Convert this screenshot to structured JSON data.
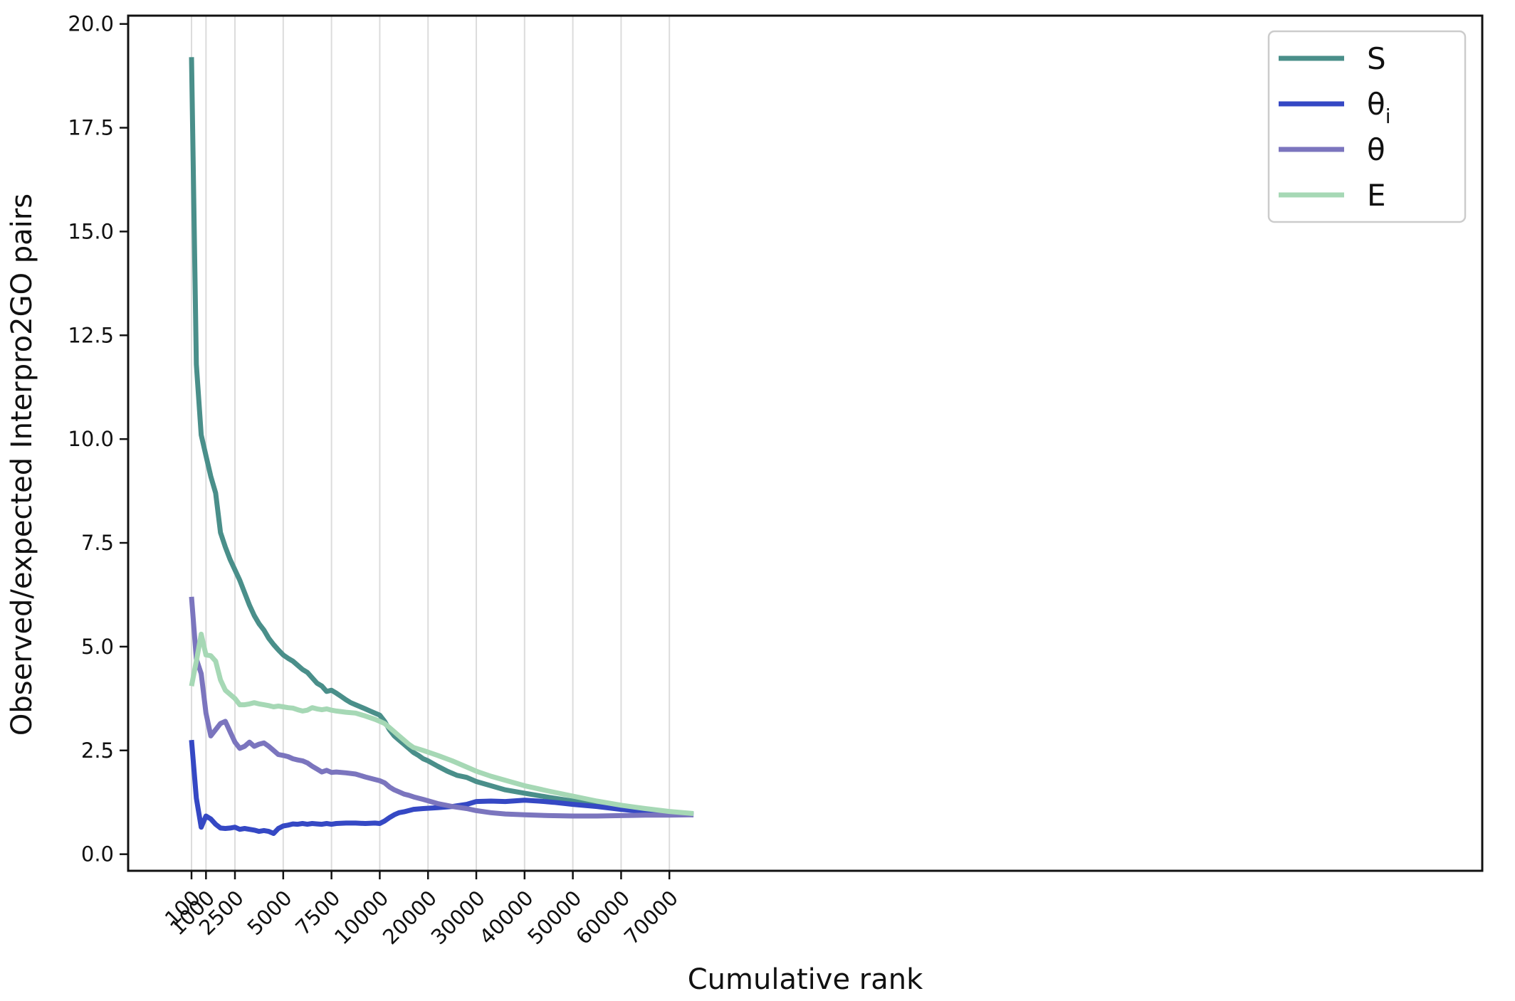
{
  "chart_data": {
    "type": "line",
    "xlabel": "Cumulative rank",
    "ylabel": "Observed/expected Interpro2GO pairs",
    "ylim": [
      -0.4,
      20.2
    ],
    "x_ticks": [
      {
        "label": "100",
        "slot": 0
      },
      {
        "label": "1000",
        "slot": 0.6
      },
      {
        "label": "2500",
        "slot": 1.8
      },
      {
        "label": "5000",
        "slot": 3.8
      },
      {
        "label": "7500",
        "slot": 5.8
      },
      {
        "label": "10000",
        "slot": 7.8
      },
      {
        "label": "20000",
        "slot": 9.8
      },
      {
        "label": "30000",
        "slot": 11.8
      },
      {
        "label": "40000",
        "slot": 13.8
      },
      {
        "label": "50000",
        "slot": 15.8
      },
      {
        "label": "60000",
        "slot": 17.8
      },
      {
        "label": "70000",
        "slot": 19.8
      }
    ],
    "y_ticks": [
      "0.0",
      "2.5",
      "5.0",
      "7.5",
      "10.0",
      "12.5",
      "15.0",
      "17.5",
      "20.0"
    ],
    "y_tick_values": [
      0,
      2.5,
      5,
      7.5,
      10,
      12.5,
      15,
      17.5,
      20
    ],
    "grid": "vertical",
    "legend_position": "top-right",
    "x_note": "x positions are given as tick slots (the axis is not linear in rank); slot 0 = 100, slot 0.6 = 1000, slot 1.8 = 2500, then 2 slots per labeled tick",
    "series": [
      {
        "name": "S",
        "subscript": "",
        "color": "#4a8f8a",
        "points": [
          [
            0,
            19.2
          ],
          [
            0.2,
            11.8
          ],
          [
            0.4,
            10.1
          ],
          [
            0.6,
            9.6
          ],
          [
            0.8,
            9.1
          ],
          [
            1.0,
            8.7
          ],
          [
            1.2,
            7.75
          ],
          [
            1.4,
            7.4
          ],
          [
            1.6,
            7.1
          ],
          [
            1.8,
            6.85
          ],
          [
            2.0,
            6.6
          ],
          [
            2.2,
            6.3
          ],
          [
            2.4,
            6.0
          ],
          [
            2.6,
            5.75
          ],
          [
            2.8,
            5.55
          ],
          [
            3.0,
            5.4
          ],
          [
            3.2,
            5.2
          ],
          [
            3.4,
            5.05
          ],
          [
            3.6,
            4.92
          ],
          [
            3.8,
            4.8
          ],
          [
            4.0,
            4.72
          ],
          [
            4.2,
            4.65
          ],
          [
            4.4,
            4.55
          ],
          [
            4.6,
            4.45
          ],
          [
            4.8,
            4.38
          ],
          [
            5.0,
            4.25
          ],
          [
            5.2,
            4.12
          ],
          [
            5.4,
            4.05
          ],
          [
            5.6,
            3.92
          ],
          [
            5.8,
            3.95
          ],
          [
            6.0,
            3.88
          ],
          [
            6.2,
            3.8
          ],
          [
            6.4,
            3.72
          ],
          [
            6.6,
            3.65
          ],
          [
            6.8,
            3.6
          ],
          [
            7.0,
            3.55
          ],
          [
            7.2,
            3.5
          ],
          [
            7.4,
            3.45
          ],
          [
            7.6,
            3.4
          ],
          [
            7.8,
            3.35
          ],
          [
            8.0,
            3.2
          ],
          [
            8.2,
            3.0
          ],
          [
            8.4,
            2.85
          ],
          [
            8.6,
            2.75
          ],
          [
            8.8,
            2.65
          ],
          [
            9.0,
            2.55
          ],
          [
            9.2,
            2.45
          ],
          [
            9.4,
            2.38
          ],
          [
            9.6,
            2.3
          ],
          [
            9.8,
            2.25
          ],
          [
            10.2,
            2.12
          ],
          [
            10.6,
            2.0
          ],
          [
            11.0,
            1.9
          ],
          [
            11.4,
            1.85
          ],
          [
            11.8,
            1.75
          ],
          [
            12.4,
            1.65
          ],
          [
            13.0,
            1.55
          ],
          [
            13.8,
            1.47
          ],
          [
            14.8,
            1.37
          ],
          [
            15.8,
            1.28
          ],
          [
            16.8,
            1.2
          ],
          [
            17.8,
            1.12
          ],
          [
            18.8,
            1.05
          ],
          [
            19.8,
            1.0
          ],
          [
            20.8,
            0.97
          ]
        ]
      },
      {
        "name": "θ",
        "subscript": "i",
        "color": "#3548c4",
        "points": [
          [
            0,
            2.75
          ],
          [
            0.2,
            1.35
          ],
          [
            0.4,
            0.65
          ],
          [
            0.6,
            0.92
          ],
          [
            0.8,
            0.85
          ],
          [
            1.0,
            0.72
          ],
          [
            1.2,
            0.63
          ],
          [
            1.4,
            0.62
          ],
          [
            1.6,
            0.63
          ],
          [
            1.8,
            0.65
          ],
          [
            2.0,
            0.6
          ],
          [
            2.2,
            0.62
          ],
          [
            2.4,
            0.6
          ],
          [
            2.6,
            0.58
          ],
          [
            2.8,
            0.55
          ],
          [
            3.0,
            0.57
          ],
          [
            3.2,
            0.55
          ],
          [
            3.4,
            0.5
          ],
          [
            3.6,
            0.62
          ],
          [
            3.8,
            0.68
          ],
          [
            4.0,
            0.7
          ],
          [
            4.2,
            0.73
          ],
          [
            4.4,
            0.72
          ],
          [
            4.6,
            0.74
          ],
          [
            4.8,
            0.72
          ],
          [
            5.0,
            0.74
          ],
          [
            5.2,
            0.73
          ],
          [
            5.4,
            0.72
          ],
          [
            5.6,
            0.74
          ],
          [
            5.8,
            0.72
          ],
          [
            6.0,
            0.74
          ],
          [
            6.4,
            0.75
          ],
          [
            6.8,
            0.75
          ],
          [
            7.2,
            0.74
          ],
          [
            7.6,
            0.75
          ],
          [
            7.8,
            0.74
          ],
          [
            8.0,
            0.8
          ],
          [
            8.2,
            0.88
          ],
          [
            8.4,
            0.95
          ],
          [
            8.6,
            1.0
          ],
          [
            8.8,
            1.02
          ],
          [
            9.0,
            1.05
          ],
          [
            9.2,
            1.08
          ],
          [
            9.6,
            1.1
          ],
          [
            10.2,
            1.12
          ],
          [
            10.8,
            1.15
          ],
          [
            11.4,
            1.2
          ],
          [
            11.8,
            1.27
          ],
          [
            12.4,
            1.28
          ],
          [
            13.0,
            1.27
          ],
          [
            13.8,
            1.3
          ],
          [
            14.4,
            1.28
          ],
          [
            15.0,
            1.25
          ],
          [
            15.8,
            1.2
          ],
          [
            16.8,
            1.15
          ],
          [
            17.8,
            1.08
          ],
          [
            18.8,
            1.02
          ],
          [
            19.8,
            0.97
          ],
          [
            20.8,
            0.95
          ]
        ]
      },
      {
        "name": "θ",
        "subscript": "",
        "color": "#7b75be",
        "points": [
          [
            0,
            6.2
          ],
          [
            0.2,
            4.7
          ],
          [
            0.4,
            4.35
          ],
          [
            0.6,
            3.4
          ],
          [
            0.8,
            2.85
          ],
          [
            1.0,
            3.0
          ],
          [
            1.2,
            3.15
          ],
          [
            1.4,
            3.2
          ],
          [
            1.6,
            2.95
          ],
          [
            1.8,
            2.7
          ],
          [
            2.0,
            2.55
          ],
          [
            2.2,
            2.6
          ],
          [
            2.4,
            2.7
          ],
          [
            2.6,
            2.6
          ],
          [
            2.8,
            2.65
          ],
          [
            3.0,
            2.68
          ],
          [
            3.2,
            2.6
          ],
          [
            3.4,
            2.5
          ],
          [
            3.6,
            2.4
          ],
          [
            3.8,
            2.38
          ],
          [
            4.0,
            2.35
          ],
          [
            4.2,
            2.3
          ],
          [
            4.4,
            2.27
          ],
          [
            4.6,
            2.25
          ],
          [
            4.8,
            2.2
          ],
          [
            5.0,
            2.12
          ],
          [
            5.2,
            2.05
          ],
          [
            5.4,
            1.98
          ],
          [
            5.6,
            2.02
          ],
          [
            5.8,
            1.97
          ],
          [
            6.0,
            1.98
          ],
          [
            6.4,
            1.96
          ],
          [
            6.8,
            1.93
          ],
          [
            7.2,
            1.86
          ],
          [
            7.6,
            1.8
          ],
          [
            7.8,
            1.77
          ],
          [
            8.0,
            1.72
          ],
          [
            8.2,
            1.62
          ],
          [
            8.4,
            1.55
          ],
          [
            8.6,
            1.5
          ],
          [
            8.8,
            1.45
          ],
          [
            9.0,
            1.42
          ],
          [
            9.2,
            1.38
          ],
          [
            9.6,
            1.32
          ],
          [
            10.2,
            1.22
          ],
          [
            10.8,
            1.15
          ],
          [
            11.4,
            1.1
          ],
          [
            11.8,
            1.05
          ],
          [
            12.4,
            1.0
          ],
          [
            13.0,
            0.97
          ],
          [
            13.8,
            0.95
          ],
          [
            14.8,
            0.93
          ],
          [
            15.8,
            0.92
          ],
          [
            16.8,
            0.92
          ],
          [
            17.8,
            0.93
          ],
          [
            18.8,
            0.94
          ],
          [
            19.8,
            0.94
          ],
          [
            20.8,
            0.95
          ]
        ]
      },
      {
        "name": "E",
        "subscript": "",
        "color": "#a6d8b5",
        "points": [
          [
            0,
            4.05
          ],
          [
            0.2,
            4.65
          ],
          [
            0.4,
            5.3
          ],
          [
            0.6,
            4.8
          ],
          [
            0.8,
            4.78
          ],
          [
            1.0,
            4.65
          ],
          [
            1.2,
            4.2
          ],
          [
            1.4,
            3.95
          ],
          [
            1.6,
            3.85
          ],
          [
            1.8,
            3.75
          ],
          [
            2.0,
            3.6
          ],
          [
            2.2,
            3.6
          ],
          [
            2.4,
            3.62
          ],
          [
            2.6,
            3.65
          ],
          [
            2.8,
            3.62
          ],
          [
            3.0,
            3.6
          ],
          [
            3.2,
            3.58
          ],
          [
            3.4,
            3.55
          ],
          [
            3.6,
            3.57
          ],
          [
            3.8,
            3.55
          ],
          [
            4.0,
            3.53
          ],
          [
            4.2,
            3.52
          ],
          [
            4.4,
            3.48
          ],
          [
            4.6,
            3.45
          ],
          [
            4.8,
            3.47
          ],
          [
            5.0,
            3.53
          ],
          [
            5.2,
            3.5
          ],
          [
            5.4,
            3.48
          ],
          [
            5.6,
            3.5
          ],
          [
            5.8,
            3.47
          ],
          [
            6.0,
            3.45
          ],
          [
            6.4,
            3.42
          ],
          [
            6.8,
            3.4
          ],
          [
            7.2,
            3.33
          ],
          [
            7.6,
            3.25
          ],
          [
            7.8,
            3.2
          ],
          [
            8.0,
            3.15
          ],
          [
            8.2,
            3.05
          ],
          [
            8.4,
            2.95
          ],
          [
            8.6,
            2.85
          ],
          [
            8.8,
            2.75
          ],
          [
            9.0,
            2.65
          ],
          [
            9.2,
            2.57
          ],
          [
            9.6,
            2.5
          ],
          [
            10.2,
            2.38
          ],
          [
            10.8,
            2.25
          ],
          [
            11.4,
            2.1
          ],
          [
            11.8,
            2.0
          ],
          [
            12.4,
            1.88
          ],
          [
            13.0,
            1.78
          ],
          [
            13.8,
            1.65
          ],
          [
            14.8,
            1.52
          ],
          [
            15.8,
            1.4
          ],
          [
            16.8,
            1.28
          ],
          [
            17.8,
            1.18
          ],
          [
            18.8,
            1.1
          ],
          [
            19.8,
            1.03
          ],
          [
            20.8,
            0.98
          ]
        ]
      }
    ]
  }
}
